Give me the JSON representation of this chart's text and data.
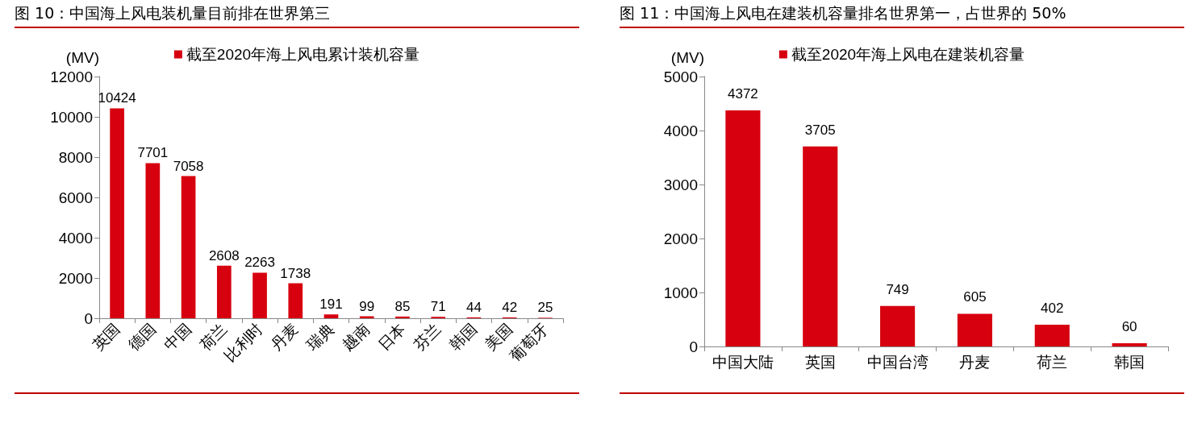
{
  "chart_data": [
    {
      "type": "bar",
      "title": "图 10：中国海上风电装机量目前排在世界第三",
      "ylabel": "(MV)",
      "categories": [
        "英国",
        "德国",
        "中国",
        "荷兰",
        "比利时",
        "丹麦",
        "瑞典",
        "越南",
        "日本",
        "芬兰",
        "韩国",
        "美国",
        "葡萄牙"
      ],
      "series": [
        {
          "name": "截至2020年海上风电累计装机容量",
          "color": "#d7000f",
          "values": [
            10424,
            7701,
            7058,
            2608,
            2263,
            1738,
            191,
            99,
            85,
            71,
            44,
            42,
            25
          ]
        }
      ],
      "ylim": [
        0,
        12000
      ],
      "yticks": [
        0,
        2000,
        4000,
        6000,
        8000,
        10000,
        12000
      ],
      "grid": false,
      "legend": "top",
      "data_labels": true
    },
    {
      "type": "bar",
      "title": "图 11：中国海上风电在建装机容量排名世界第一，占世界的 50%",
      "ylabel": "(MV)",
      "categories": [
        "中国大陆",
        "英国",
        "中国台湾",
        "丹麦",
        "荷兰",
        "韩国"
      ],
      "series": [
        {
          "name": "截至2020年海上风电在建装机容量",
          "color": "#d7000f",
          "values": [
            4372,
            3705,
            749,
            605,
            402,
            60
          ]
        }
      ],
      "ylim": [
        0,
        5000
      ],
      "yticks": [
        0,
        1000,
        2000,
        3000,
        4000,
        5000
      ],
      "grid": false,
      "legend": "top",
      "data_labels": true
    }
  ]
}
